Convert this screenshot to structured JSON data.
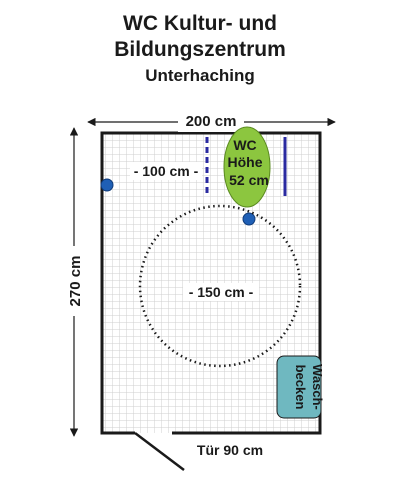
{
  "title": {
    "line1": "WC Kultur- und",
    "line2": "Bildungszentrum",
    "subtitle": "Unterhaching"
  },
  "dimensions": {
    "width": "200 cm",
    "height": "270 cm",
    "distance": "- 100 cm -",
    "turning_circle": "- 150 cm -",
    "door": "Tür 90 cm"
  },
  "wc": {
    "line1": "WC",
    "line2": "Höhe",
    "line3": "52 cm"
  },
  "sink": {
    "line1": "Wasch-",
    "line2": "becken"
  },
  "colors": {
    "wc_fill": "#8cc63f",
    "sink_fill": "#6fb8c0",
    "grab_bar": "#2a2aa0",
    "button": "#1f5fb5",
    "wall": "#1a1a1a",
    "tile_line": "#cfcfcf"
  }
}
